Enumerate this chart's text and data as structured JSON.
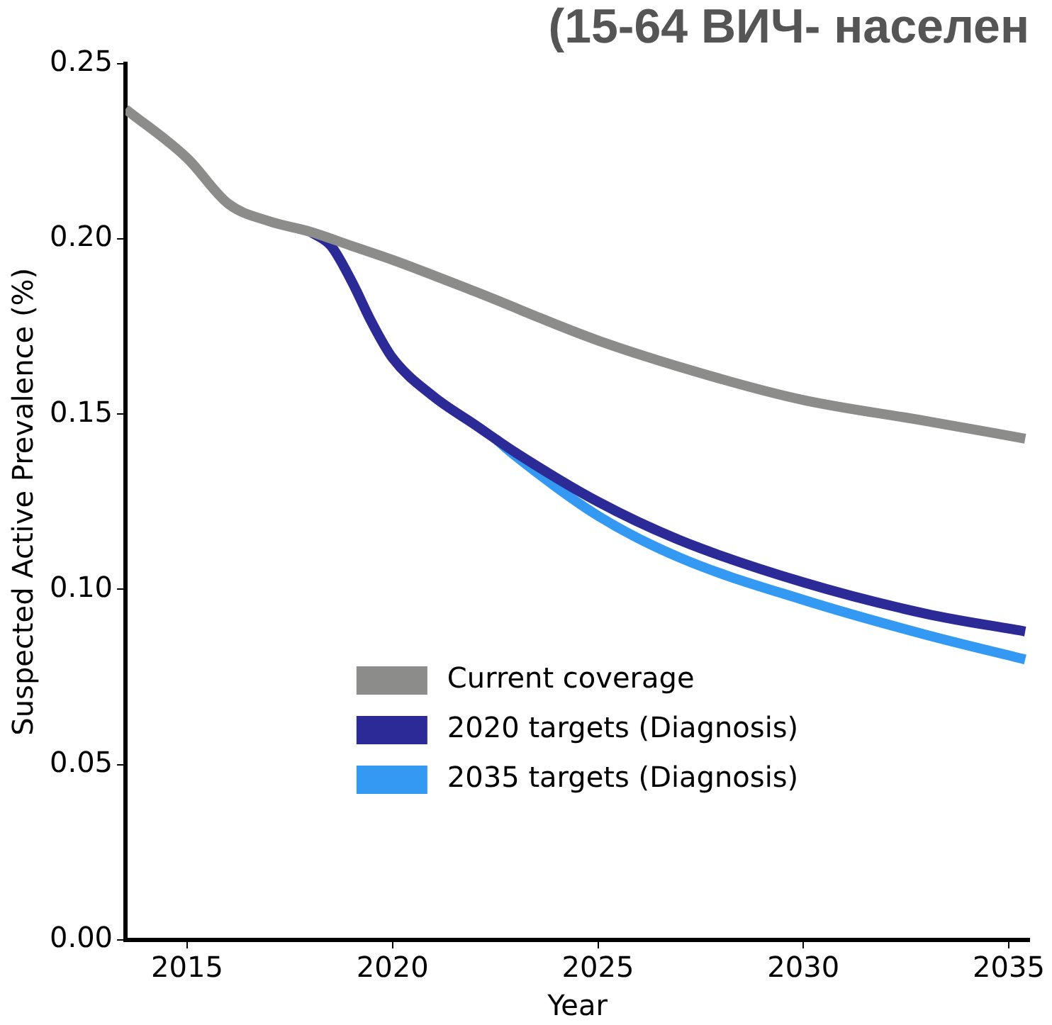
{
  "chart_data": {
    "type": "line",
    "title": "(15-64 ВИЧ- населен",
    "xlabel": "Year",
    "ylabel": "Suspected Active Prevalence (%)",
    "xlim": [
      2013.5,
      2035.5
    ],
    "xticks": [
      2015,
      2020,
      2025,
      2030,
      2035
    ],
    "ylim": [
      0,
      0.25
    ],
    "yticks": [
      {
        "value": 0,
        "label": "0.00"
      },
      0.05,
      {
        "value": 0.1,
        "label": "0.10"
      },
      0.15,
      {
        "value": 0.2,
        "label": "0.20"
      },
      0.25
    ],
    "grid": false,
    "legend": "bottom",
    "marker": "none",
    "line_style": "solid",
    "series": [
      {
        "name": "Current coverage",
        "color": "#8c8c8a",
        "x": [
          2013.5,
          2015,
          2016,
          2017,
          2018,
          2019,
          2020,
          2022,
          2025,
          2028,
          2030,
          2033,
          2035.4
        ],
        "values": [
          0.237,
          0.223,
          0.21,
          0.205,
          0.202,
          0.198,
          0.194,
          0.185,
          0.171,
          0.16,
          0.154,
          0.148,
          0.143
        ]
      },
      {
        "name": "2020 targets (Diagnosis)",
        "color": "#2b2a96",
        "x": [
          2018,
          2018.5,
          2019,
          2019.5,
          2020,
          2021,
          2022,
          2023,
          2025,
          2027,
          2030,
          2033,
          2035.4
        ],
        "values": [
          0.202,
          0.198,
          0.188,
          0.176,
          0.166,
          0.155,
          0.147,
          0.139,
          0.125,
          0.114,
          0.102,
          0.093,
          0.088
        ]
      },
      {
        "name": "2035 targets (Diagnosis)",
        "color": "#3399f3",
        "x": [
          2022.5,
          2023,
          2025,
          2027,
          2030,
          2033,
          2035.4
        ],
        "values": [
          0.143,
          0.138,
          0.121,
          0.109,
          0.097,
          0.087,
          0.08
        ]
      }
    ]
  }
}
